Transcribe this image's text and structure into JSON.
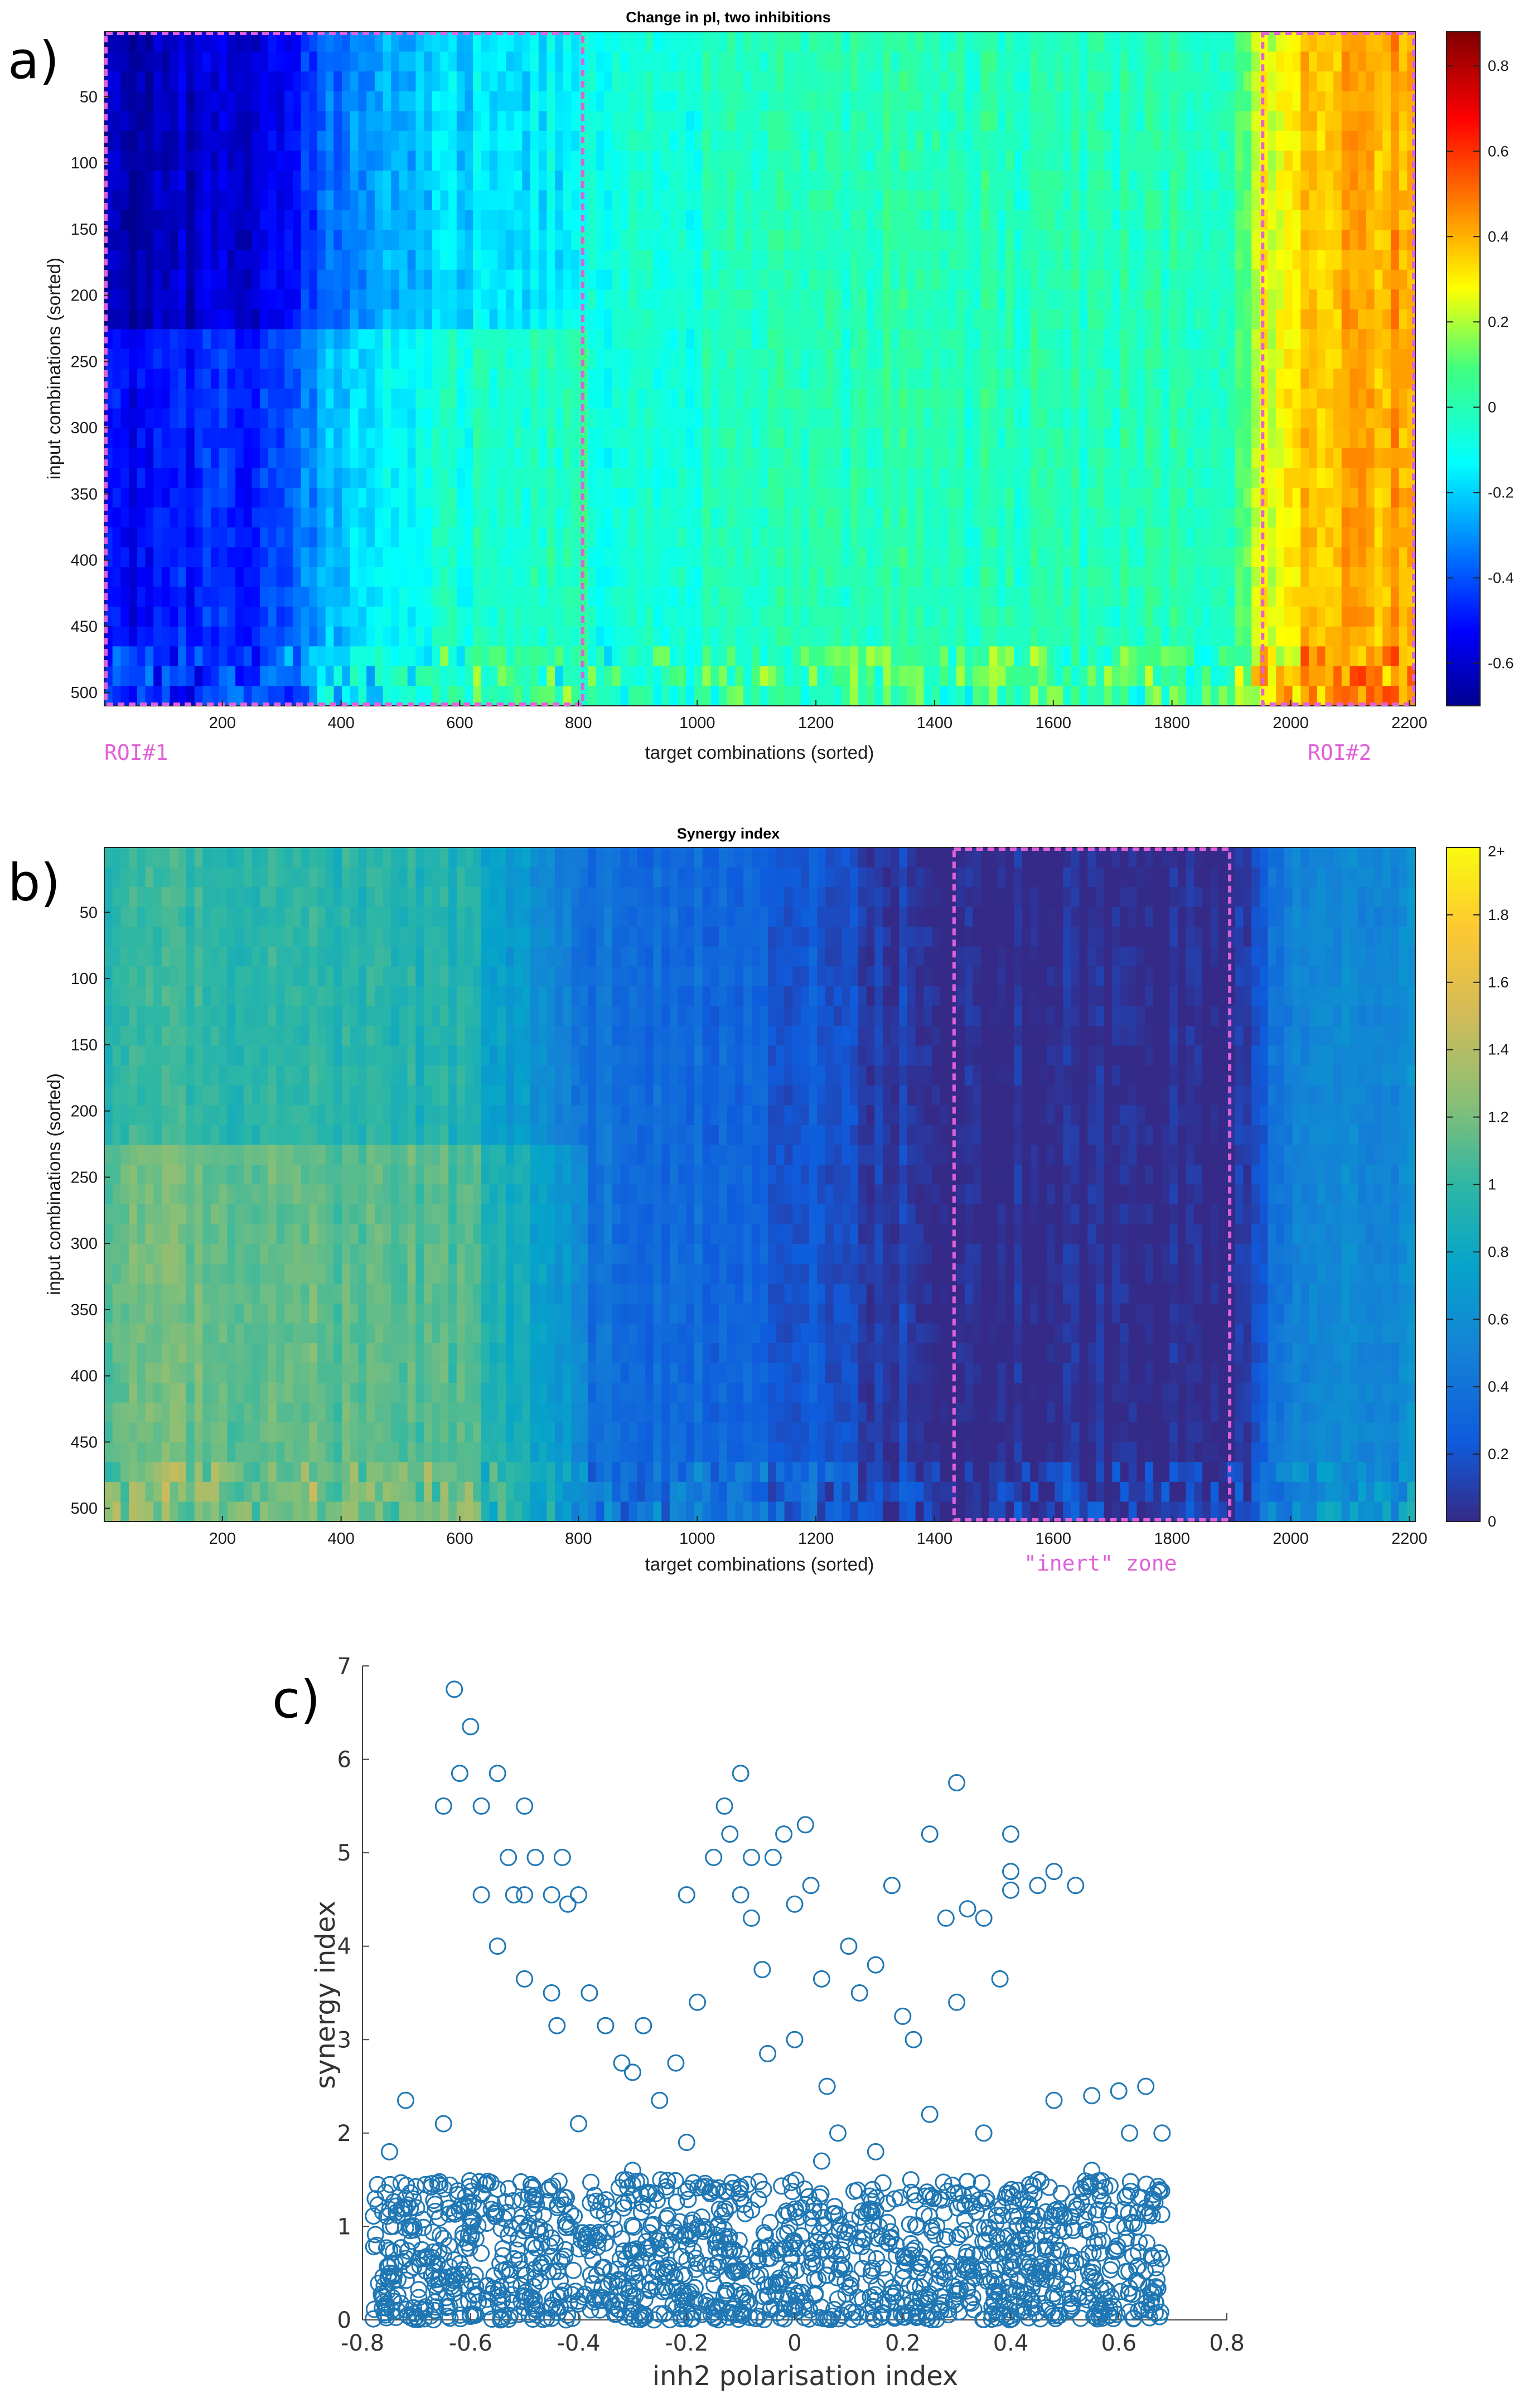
{
  "panels": {
    "a": {
      "letter": "a)"
    },
    "b": {
      "letter": "b)"
    },
    "c": {
      "letter": "c)"
    }
  },
  "annotations": {
    "roi1": "ROI#1",
    "roi2": "ROI#2",
    "inert": "\"inert\" zone"
  },
  "colors": {
    "roi_box": "#e060d8",
    "scatter_marker": "#1f77b4"
  },
  "chart_data": [
    {
      "type": "heatmap",
      "title": "Change in pI, two inhibitions",
      "xlabel": "target combinations (sorted)",
      "ylabel": "input combinations (sorted)",
      "xlim": [
        1,
        2210
      ],
      "ylim": [
        1,
        510
      ],
      "x_ticks": [
        200,
        400,
        600,
        800,
        1000,
        1200,
        1400,
        1600,
        1800,
        2000,
        2200
      ],
      "y_ticks": [
        50,
        100,
        150,
        200,
        250,
        300,
        350,
        400,
        450,
        500
      ],
      "colormap": "jet",
      "clim": [
        -0.7,
        0.88
      ],
      "colorbar_ticks": [
        -0.6,
        -0.4,
        -0.2,
        0,
        0.2,
        0.4,
        0.6,
        0.8
      ],
      "colorbar_ticks_text": [
        "-0.6",
        "-0.4",
        "-0.2",
        "0",
        "0.2",
        "0.4",
        "0.6",
        "0.8"
      ],
      "regions": [
        {
          "label": "ROI#1",
          "x_range": [
            1,
            810
          ],
          "y_range": [
            1,
            510
          ]
        },
        {
          "label": "ROI#2",
          "x_range": [
            1950,
            2210
          ],
          "y_range": [
            1,
            510
          ]
        }
      ],
      "column_profile_x": [
        1,
        130,
        250,
        400,
        500,
        620,
        810,
        1100,
        1400,
        1700,
        1900,
        1950,
        2060,
        2210
      ],
      "column_profile_value": [
        -0.65,
        -0.62,
        -0.58,
        -0.35,
        -0.25,
        -0.18,
        -0.12,
        -0.02,
        0.0,
        0.0,
        0.02,
        0.25,
        0.38,
        0.45
      ]
    },
    {
      "type": "heatmap",
      "title": "Synergy index",
      "xlabel": "target combinations (sorted)",
      "ylabel": "input combinations (sorted)",
      "xlim": [
        1,
        2210
      ],
      "ylim": [
        1,
        510
      ],
      "x_ticks": [
        200,
        400,
        600,
        800,
        1000,
        1200,
        1400,
        1600,
        1800,
        2000,
        2200
      ],
      "y_ticks": [
        50,
        100,
        150,
        200,
        250,
        300,
        350,
        400,
        450,
        500
      ],
      "colormap": "parula",
      "clim": [
        0,
        2
      ],
      "colorbar_ticks": [
        0,
        0.2,
        0.4,
        0.6,
        0.8,
        1,
        1.2,
        1.4,
        1.6,
        1.8,
        2
      ],
      "colorbar_ticks_text": [
        "0",
        "0.2",
        "0.4",
        "0.6",
        "0.8",
        "1",
        "1.2",
        "1.4",
        "1.6",
        "1.8",
        "2+"
      ],
      "regions": [
        {
          "label": "\"inert\" zone",
          "x_range": [
            1430,
            1900
          ],
          "y_range": [
            1,
            510
          ]
        }
      ],
      "column_profile_x": [
        1,
        300,
        620,
        800,
        1100,
        1430,
        1900,
        2000,
        2210
      ],
      "column_profile_value": [
        1.0,
        1.0,
        0.9,
        0.4,
        0.3,
        0.0,
        0.0,
        0.5,
        0.6
      ]
    },
    {
      "type": "scatter",
      "xlabel": "inh2 polarisation index",
      "ylabel": "synergy index",
      "xlim": [
        -0.8,
        0.8
      ],
      "ylim": [
        0,
        7
      ],
      "x_ticks": [
        -0.8,
        -0.6,
        -0.4,
        -0.2,
        0,
        0.2,
        0.4,
        0.6,
        0.8
      ],
      "x_ticks_text": [
        "-0.8",
        "-0.6",
        "-0.4",
        "-0.2",
        "0",
        "0.2",
        "0.4",
        "0.6",
        "0.8"
      ],
      "y_ticks": [
        0,
        1,
        2,
        3,
        4,
        5,
        6,
        7
      ],
      "marker": "open circle",
      "x": [
        -0.75,
        -0.75,
        -0.72,
        -0.72,
        -0.65,
        -0.65,
        -0.63,
        -0.62,
        -0.6,
        -0.58,
        -0.58,
        -0.55,
        -0.55,
        -0.53,
        -0.52,
        -0.5,
        -0.5,
        -0.5,
        -0.48,
        -0.45,
        -0.45,
        -0.44,
        -0.43,
        -0.42,
        -0.4,
        -0.4,
        -0.38,
        -0.35,
        -0.32,
        -0.3,
        -0.28,
        -0.25,
        -0.22,
        -0.2,
        -0.18,
        -0.15,
        -0.13,
        -0.12,
        -0.1,
        -0.1,
        -0.08,
        -0.08,
        -0.06,
        -0.05,
        -0.04,
        -0.02,
        0.0,
        0.0,
        0.02,
        0.03,
        0.05,
        0.06,
        0.08,
        0.1,
        0.12,
        0.15,
        0.18,
        0.2,
        0.22,
        0.25,
        0.28,
        0.3,
        0.3,
        0.32,
        0.35,
        0.38,
        0.4,
        0.4,
        0.4,
        0.45,
        0.48,
        0.48,
        0.52,
        0.55,
        0.6,
        0.62,
        0.65,
        0.68,
        -0.7,
        -0.6,
        -0.55,
        -0.3,
        -0.2,
        -0.1,
        0.05,
        0.15,
        0.25,
        0.35,
        0.45,
        0.55,
        0.65
      ],
      "y": [
        1.8,
        0.5,
        2.35,
        1.3,
        5.5,
        2.1,
        6.75,
        5.85,
        6.35,
        5.5,
        4.55,
        5.85,
        4.0,
        4.95,
        4.55,
        5.5,
        4.55,
        3.65,
        4.95,
        4.55,
        3.5,
        3.15,
        4.95,
        4.45,
        4.55,
        2.1,
        3.5,
        3.15,
        2.75,
        2.65,
        3.15,
        2.35,
        2.75,
        4.55,
        3.4,
        4.95,
        5.5,
        5.2,
        5.85,
        4.55,
        4.95,
        4.3,
        3.75,
        2.85,
        4.95,
        5.2,
        4.45,
        3.0,
        5.3,
        4.65,
        3.65,
        2.5,
        2.0,
        4.0,
        3.5,
        3.8,
        4.65,
        3.25,
        3.0,
        5.2,
        4.3,
        3.4,
        5.75,
        4.4,
        4.3,
        3.65,
        4.8,
        4.6,
        5.2,
        4.65,
        4.8,
        2.35,
        4.65,
        2.4,
        2.45,
        2.0,
        2.5,
        2.0,
        1.2,
        1.0,
        1.4,
        1.6,
        1.9,
        1.3,
        1.7,
        1.8,
        2.2,
        2.0,
        1.5,
        1.6,
        1.2
      ],
      "dense_band": {
        "x_range": [
          -0.78,
          0.68
        ],
        "y_range": [
          0,
          1.5
        ],
        "description": "dense cloud of points between synergy index 0 and 1.5"
      }
    }
  ]
}
